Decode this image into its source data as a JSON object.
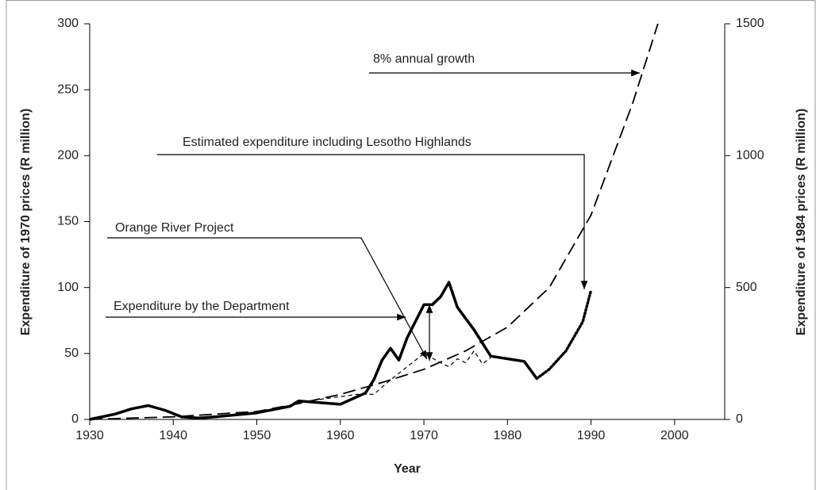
{
  "chart_data": {
    "type": "line",
    "x_label": "Year",
    "y_label": "Expenditure of 1970 prices (R million)",
    "y2_label": "Expenditure of 1984 prices (R million)",
    "xlim": [
      1930,
      2006
    ],
    "xticks": [
      1930,
      1940,
      1950,
      1960,
      1970,
      1980,
      1990,
      2000
    ],
    "ylim": [
      0,
      300
    ],
    "yticks": [
      0,
      50,
      100,
      150,
      200,
      250,
      300
    ],
    "y2lim": [
      0,
      1500
    ],
    "y2ticks": [
      0,
      500,
      1000,
      1500
    ],
    "series": [
      {
        "name": "Expenditure by the Department",
        "color": "#000000",
        "line_style": "solid",
        "x": [
          1930,
          1933,
          1935,
          1937,
          1939,
          1941,
          1943,
          1945,
          1950,
          1954,
          1955,
          1957,
          1960,
          1963,
          1964,
          1965,
          1966,
          1967,
          1968,
          1970,
          1971,
          1972,
          1973,
          1974,
          1976,
          1978,
          1982,
          1983.5
        ],
        "values": [
          0,
          4,
          8,
          10.5,
          7,
          2,
          1,
          2,
          5,
          10,
          14,
          13,
          11.5,
          20,
          30,
          45,
          54,
          45,
          62,
          87,
          87,
          93,
          104,
          85,
          68,
          48,
          44,
          31
        ]
      },
      {
        "name": "Estimated expenditure including Lesotho Highlands",
        "color": "#000000",
        "line_style": "dotted",
        "x": [
          1983.5,
          1985,
          1987,
          1989,
          1990
        ],
        "values": [
          31,
          38,
          52,
          74,
          98
        ]
      },
      {
        "name": "Orange River Project",
        "color": "#000000",
        "line_style": "dashed",
        "x": [
          1955,
          1962,
          1964,
          1966,
          1968,
          1970,
          1972,
          1973,
          1974,
          1975,
          1976,
          1977,
          1978
        ],
        "values": [
          13,
          19,
          19,
          30,
          40,
          50,
          43,
          40,
          46,
          43,
          52,
          42,
          47
        ]
      },
      {
        "name": "8% annual growth",
        "color": "#000000",
        "line_style": "long-dashed",
        "x": [
          1930,
          1940,
          1950,
          1955,
          1960,
          1965,
          1970,
          1975,
          1980,
          1985,
          1990,
          1995,
          1998
        ],
        "values": [
          0,
          2,
          6,
          12,
          19,
          28,
          38,
          52,
          70,
          100,
          155,
          240,
          300
        ]
      }
    ]
  }
}
